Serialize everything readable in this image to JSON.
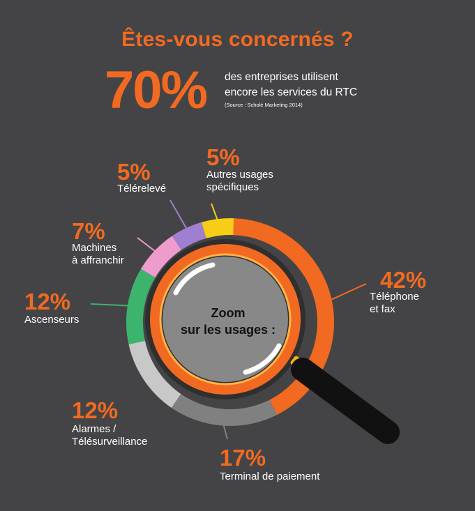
{
  "header": {
    "title": "Êtes-vous concernés ?",
    "big_stat": "70%",
    "stat_line1": "des entreprises utilisent",
    "stat_line2": "encore les services du RTC",
    "source": "(Source : Scholè Marketing 2014)"
  },
  "center": {
    "line1": "Zoom",
    "line2": "sur les usages :"
  },
  "chart_data": {
    "type": "pie",
    "title": "",
    "slices": [
      {
        "label_lines": [
          "Téléphone",
          "et fax"
        ],
        "value": 42,
        "value_label": "42%",
        "color": "#f26a21"
      },
      {
        "label_lines": [
          "Terminal de paiement"
        ],
        "value": 17,
        "value_label": "17%",
        "color": "#808080"
      },
      {
        "label_lines": [
          "Alarmes /",
          "Télésurveillance"
        ],
        "value": 12,
        "value_label": "12%",
        "color": "#c8c8c8"
      },
      {
        "label_lines": [
          "Ascenseurs"
        ],
        "value": 12,
        "value_label": "12%",
        "color": "#3cb46e"
      },
      {
        "label_lines": [
          "Machines",
          "à affranchir"
        ],
        "value": 7,
        "value_label": "7%",
        "color": "#ee9ccc"
      },
      {
        "label_lines": [
          "Télérelevé"
        ],
        "value": 5,
        "value_label": "5%",
        "color": "#9f7fd0"
      },
      {
        "label_lines": [
          "Autres usages",
          "spécifiques"
        ],
        "value": 5,
        "value_label": "5%",
        "color": "#f7cd16"
      }
    ]
  },
  "colors": {
    "background": "#444446",
    "accent": "#f26a21",
    "lens": "#888888",
    "handle": "#111111"
  }
}
